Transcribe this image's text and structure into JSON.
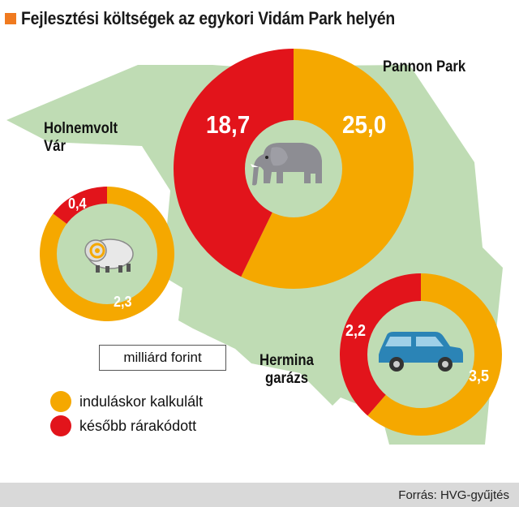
{
  "title": "Fejlesztési költségek az egykori Vidám Park helyén",
  "unit": "milliárd forint",
  "source": "Forrás: HVG-gyűjtés",
  "colors": {
    "initial": "#f5a800",
    "later": "#e2141b",
    "map": "#bfdcb4",
    "accent": "#f07a1f"
  },
  "legend": [
    {
      "label": "induláskor kalkulált",
      "color": "#f5a800"
    },
    {
      "label": "később rárakódott",
      "color": "#e2141b"
    }
  ],
  "chart_data": [
    {
      "type": "pie",
      "name": "Pannon Park",
      "labels": [
        "induláskor kalkulált",
        "később rárakódott"
      ],
      "values": [
        25.0,
        18.7
      ],
      "value_labels": [
        "25,0",
        "18,7"
      ],
      "icon": "elephant-icon"
    },
    {
      "type": "pie",
      "name": "Holnemvolt Vár",
      "name_lines": [
        "Holnemvolt",
        "Vár"
      ],
      "labels": [
        "induláskor kalkulált",
        "később rárakódott"
      ],
      "values": [
        2.3,
        0.4
      ],
      "value_labels": [
        "2,3",
        "0,4"
      ],
      "icon": "ram-icon"
    },
    {
      "type": "pie",
      "name": "Hermina garázs",
      "name_lines": [
        "Hermina",
        "garázs"
      ],
      "labels": [
        "induláskor kalkulált",
        "később rárakódott"
      ],
      "values": [
        3.5,
        2.2
      ],
      "value_labels": [
        "3,5",
        "2,2"
      ],
      "icon": "car-icon"
    }
  ]
}
